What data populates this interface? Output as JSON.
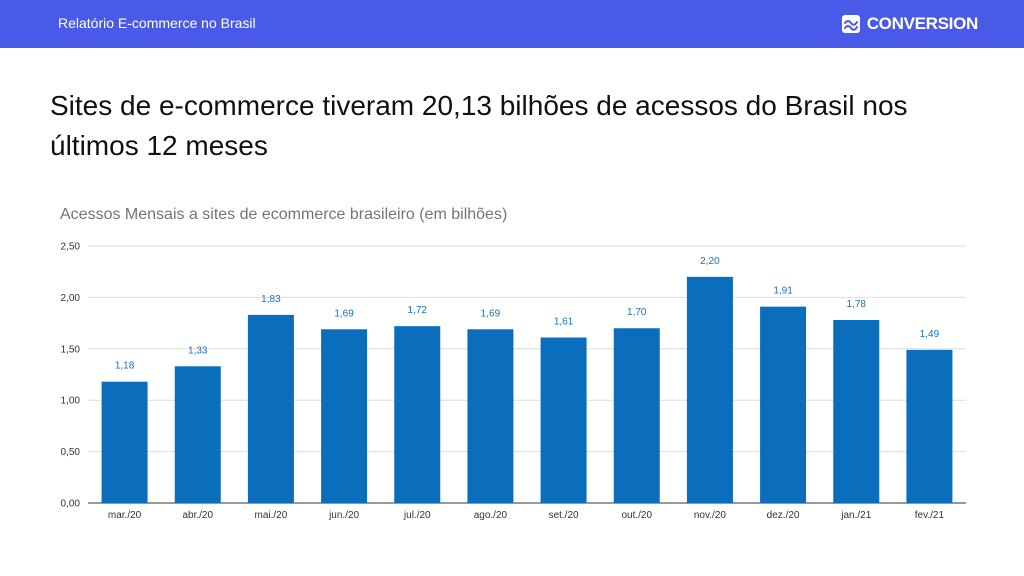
{
  "header": {
    "title": "Relatório E-commerce no Brasil",
    "brand": "CONVERSION",
    "background_color": "#4a5ae8"
  },
  "headline": "Sites de e-commerce tiveram 20,13 bilhões de acessos do Brasil nos últimos 12 meses",
  "chart_data": {
    "type": "bar",
    "title": "Acessos Mensais a sites de ecommerce brasileiro (em bilhões)",
    "xlabel": "",
    "ylabel": "",
    "categories": [
      "mar./20",
      "abr./20",
      "mai./20",
      "jun./20",
      "jul./20",
      "ago./20",
      "set./20",
      "out./20",
      "nov./20",
      "dez./20",
      "jan./21",
      "fev./21"
    ],
    "values": [
      1.18,
      1.33,
      1.83,
      1.69,
      1.72,
      1.69,
      1.61,
      1.7,
      2.2,
      1.91,
      1.78,
      1.49
    ],
    "value_labels": [
      "1,18",
      "1,33",
      "1,83",
      "1,69",
      "1,72",
      "1,69",
      "1,61",
      "1,70",
      "2,20",
      "1,91",
      "1,78",
      "1,49"
    ],
    "ylim": [
      0,
      2.5
    ],
    "yticks": [
      0,
      0.5,
      1.0,
      1.5,
      2.0,
      2.5
    ],
    "ytick_labels": [
      "0,00",
      "0,50",
      "1,00",
      "1,50",
      "2,00",
      "2,50"
    ],
    "grid": true,
    "legend": "none",
    "bar_color": "#0a6ebd"
  }
}
